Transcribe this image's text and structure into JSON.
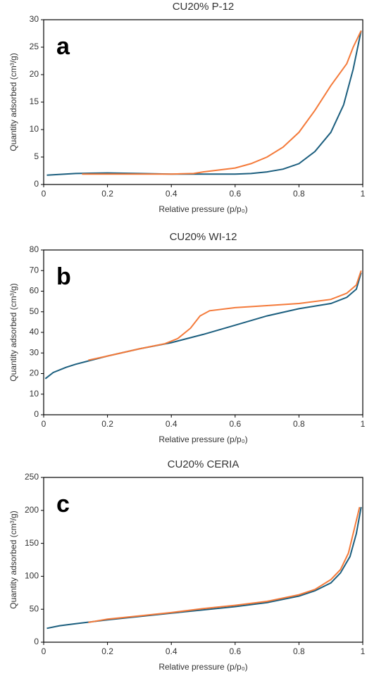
{
  "chart_data": [
    {
      "type": "line",
      "title": "CU20% P-12",
      "annotation": "a",
      "xlabel": "Relative pressure (p/p₀)",
      "ylabel": "Quantity adsorbed (cm³/g)",
      "xlim": [
        0,
        1
      ],
      "xticks": [
        0,
        0.2,
        0.4,
        0.6,
        0.8,
        1
      ],
      "ylim": [
        0,
        30
      ],
      "yticks": [
        0,
        5,
        10,
        15,
        20,
        25,
        30
      ],
      "series": [
        {
          "color": "#1b5e7e",
          "x": [
            0.01,
            0.1,
            0.2,
            0.3,
            0.4,
            0.5,
            0.6,
            0.65,
            0.7,
            0.75,
            0.8,
            0.85,
            0.9,
            0.94,
            0.97,
            0.995
          ],
          "values": [
            1.7,
            2.0,
            2.1,
            2.0,
            1.9,
            1.9,
            1.9,
            2.0,
            2.3,
            2.8,
            3.8,
            6,
            9.5,
            14.5,
            21,
            28
          ]
        },
        {
          "color": "#f47a3a",
          "x": [
            0.12,
            0.2,
            0.3,
            0.4,
            0.47,
            0.5,
            0.6,
            0.65,
            0.7,
            0.75,
            0.8,
            0.85,
            0.9,
            0.95,
            0.97,
            0.995
          ],
          "values": [
            1.9,
            1.9,
            1.9,
            1.9,
            2.0,
            2.3,
            3.0,
            3.8,
            5.0,
            6.8,
            9.5,
            13.5,
            18,
            22,
            25,
            28
          ]
        }
      ]
    },
    {
      "type": "line",
      "title": "CU20% WI-12",
      "annotation": "b",
      "xlabel": "Relative pressure (p/p₀)",
      "ylabel": "Quantity adsorbed (cm³/g)",
      "xlim": [
        0,
        1
      ],
      "xticks": [
        0,
        0.2,
        0.4,
        0.6,
        0.8,
        1
      ],
      "ylim": [
        0,
        80
      ],
      "yticks": [
        0,
        10,
        20,
        30,
        40,
        50,
        60,
        70,
        80
      ],
      "series": [
        {
          "color": "#1b5e7e",
          "x": [
            0.005,
            0.03,
            0.07,
            0.1,
            0.2,
            0.3,
            0.4,
            0.5,
            0.6,
            0.7,
            0.8,
            0.9,
            0.95,
            0.98,
            0.995
          ],
          "values": [
            17.5,
            20.5,
            23,
            24.5,
            28.5,
            32,
            35,
            39,
            43.5,
            48,
            51.5,
            54,
            57,
            61,
            69
          ]
        },
        {
          "color": "#f47a3a",
          "x": [
            0.14,
            0.2,
            0.3,
            0.38,
            0.42,
            0.46,
            0.49,
            0.52,
            0.6,
            0.7,
            0.8,
            0.9,
            0.95,
            0.98,
            0.995
          ],
          "values": [
            26.5,
            28.5,
            32,
            34.5,
            37,
            42,
            48,
            50.5,
            52,
            53,
            54,
            56,
            59,
            63,
            70
          ]
        }
      ]
    },
    {
      "type": "line",
      "title": "CU20% CERIA",
      "annotation": "c",
      "xlabel": "Relative pressure (p/p₀)",
      "ylabel": "Quantity adsorbed (cm³/g)",
      "xlim": [
        0,
        1
      ],
      "xticks": [
        0,
        0.2,
        0.4,
        0.6,
        0.8,
        1
      ],
      "ylim": [
        0,
        250
      ],
      "yticks": [
        0,
        50,
        100,
        150,
        200,
        250
      ],
      "series": [
        {
          "color": "#1b5e7e",
          "x": [
            0.01,
            0.05,
            0.1,
            0.2,
            0.3,
            0.4,
            0.5,
            0.6,
            0.7,
            0.8,
            0.85,
            0.9,
            0.93,
            0.96,
            0.98,
            0.995
          ],
          "values": [
            21,
            25,
            28,
            34,
            39,
            44,
            49,
            54,
            60,
            70,
            78,
            90,
            105,
            130,
            165,
            205
          ]
        },
        {
          "color": "#f47a3a",
          "x": [
            0.14,
            0.2,
            0.3,
            0.4,
            0.5,
            0.6,
            0.7,
            0.8,
            0.85,
            0.9,
            0.93,
            0.955,
            0.975,
            0.99
          ],
          "values": [
            30,
            35,
            40,
            45,
            51,
            56,
            62,
            72,
            80,
            95,
            110,
            135,
            175,
            205
          ]
        }
      ]
    }
  ]
}
